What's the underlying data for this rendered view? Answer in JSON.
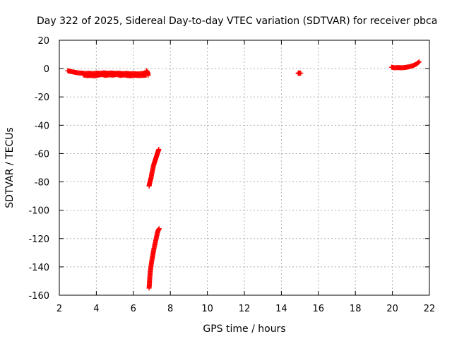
{
  "chart_data": {
    "type": "scatter",
    "title": "Day 322 of 2025, Sidereal Day-to-day VTEC variation (SDTVAR) for receiver pbca",
    "xlabel": "GPS time / hours",
    "ylabel": "SDTVAR / TECUs",
    "xlim": [
      2,
      22
    ],
    "ylim": [
      -160,
      20
    ],
    "xticks": [
      2,
      4,
      6,
      8,
      10,
      12,
      14,
      16,
      18,
      20,
      22
    ],
    "yticks": [
      20,
      0,
      -20,
      -40,
      -60,
      -80,
      -100,
      -120,
      -140,
      -160
    ],
    "grid": true,
    "marker": "plus",
    "color": "#ff0000",
    "segments": [
      {
        "points": [
          [
            2.45,
            -1.5
          ],
          [
            2.6,
            -2
          ],
          [
            2.8,
            -2.5
          ],
          [
            3.0,
            -3
          ],
          [
            3.2,
            -3.2
          ],
          [
            3.4,
            -3.5
          ],
          [
            3.6,
            -3.3
          ],
          [
            3.8,
            -3.6
          ],
          [
            4.0,
            -3.2
          ],
          [
            4.2,
            -3.4
          ],
          [
            4.4,
            -3.0
          ],
          [
            4.6,
            -3.3
          ],
          [
            4.8,
            -3.1
          ],
          [
            5.0,
            -3.4
          ],
          [
            5.2,
            -3.2
          ],
          [
            5.4,
            -3.6
          ],
          [
            5.6,
            -3.4
          ],
          [
            5.8,
            -3.7
          ],
          [
            6.0,
            -3.5
          ],
          [
            6.2,
            -3.8
          ],
          [
            6.4,
            -3.6
          ],
          [
            6.6,
            -3.4
          ],
          [
            6.75,
            -3.0
          ]
        ]
      },
      {
        "points": [
          [
            3.3,
            -4.5
          ],
          [
            3.5,
            -5
          ],
          [
            3.7,
            -4.8
          ],
          [
            3.9,
            -5.2
          ],
          [
            4.1,
            -4.6
          ],
          [
            4.3,
            -4.2
          ],
          [
            4.5,
            -4.8
          ],
          [
            4.7,
            -4.4
          ],
          [
            4.9,
            -4.6
          ],
          [
            5.1,
            -4.2
          ],
          [
            5.3,
            -4.8
          ],
          [
            5.5,
            -4.5
          ],
          [
            5.7,
            -4.9
          ],
          [
            5.9,
            -5.1
          ],
          [
            6.1,
            -4.7
          ],
          [
            6.3,
            -5.0
          ],
          [
            6.5,
            -4.8
          ],
          [
            6.7,
            -4.6
          ]
        ]
      },
      {
        "points": [
          [
            6.7,
            -1.5
          ],
          [
            6.75,
            -2.2
          ],
          [
            6.8,
            -4.8
          ],
          [
            6.78,
            -2.8
          ]
        ]
      },
      {
        "points": [
          [
            6.85,
            -83
          ],
          [
            6.88,
            -81
          ],
          [
            6.92,
            -79
          ],
          [
            6.96,
            -77
          ],
          [
            7.0,
            -74
          ],
          [
            7.05,
            -71
          ],
          [
            7.1,
            -68
          ],
          [
            7.15,
            -66
          ],
          [
            7.2,
            -64
          ],
          [
            7.25,
            -62
          ],
          [
            7.3,
            -60
          ],
          [
            7.35,
            -58
          ],
          [
            7.38,
            -57
          ]
        ]
      },
      {
        "points": [
          [
            6.85,
            -155
          ],
          [
            6.87,
            -152
          ],
          [
            6.88,
            -149
          ],
          [
            6.9,
            -146
          ],
          [
            6.92,
            -143
          ],
          [
            6.95,
            -140
          ],
          [
            6.98,
            -137
          ],
          [
            7.02,
            -134
          ],
          [
            7.06,
            -131
          ],
          [
            7.1,
            -128
          ],
          [
            7.15,
            -125
          ],
          [
            7.2,
            -122
          ],
          [
            7.25,
            -119
          ],
          [
            7.3,
            -116
          ],
          [
            7.35,
            -114
          ],
          [
            7.4,
            -113
          ]
        ]
      },
      {
        "points": [
          [
            14.9,
            -3.5
          ],
          [
            14.95,
            -3.0
          ],
          [
            15.0,
            -3.3
          ],
          [
            15.05,
            -3.2
          ]
        ]
      },
      {
        "points": [
          [
            19.95,
            1.0
          ],
          [
            20.1,
            0.6
          ],
          [
            20.3,
            0.7
          ],
          [
            20.5,
            0.6
          ],
          [
            20.7,
            0.8
          ],
          [
            20.9,
            1.3
          ],
          [
            21.1,
            2.0
          ],
          [
            21.3,
            3.2
          ],
          [
            21.45,
            4.8
          ]
        ]
      }
    ]
  }
}
